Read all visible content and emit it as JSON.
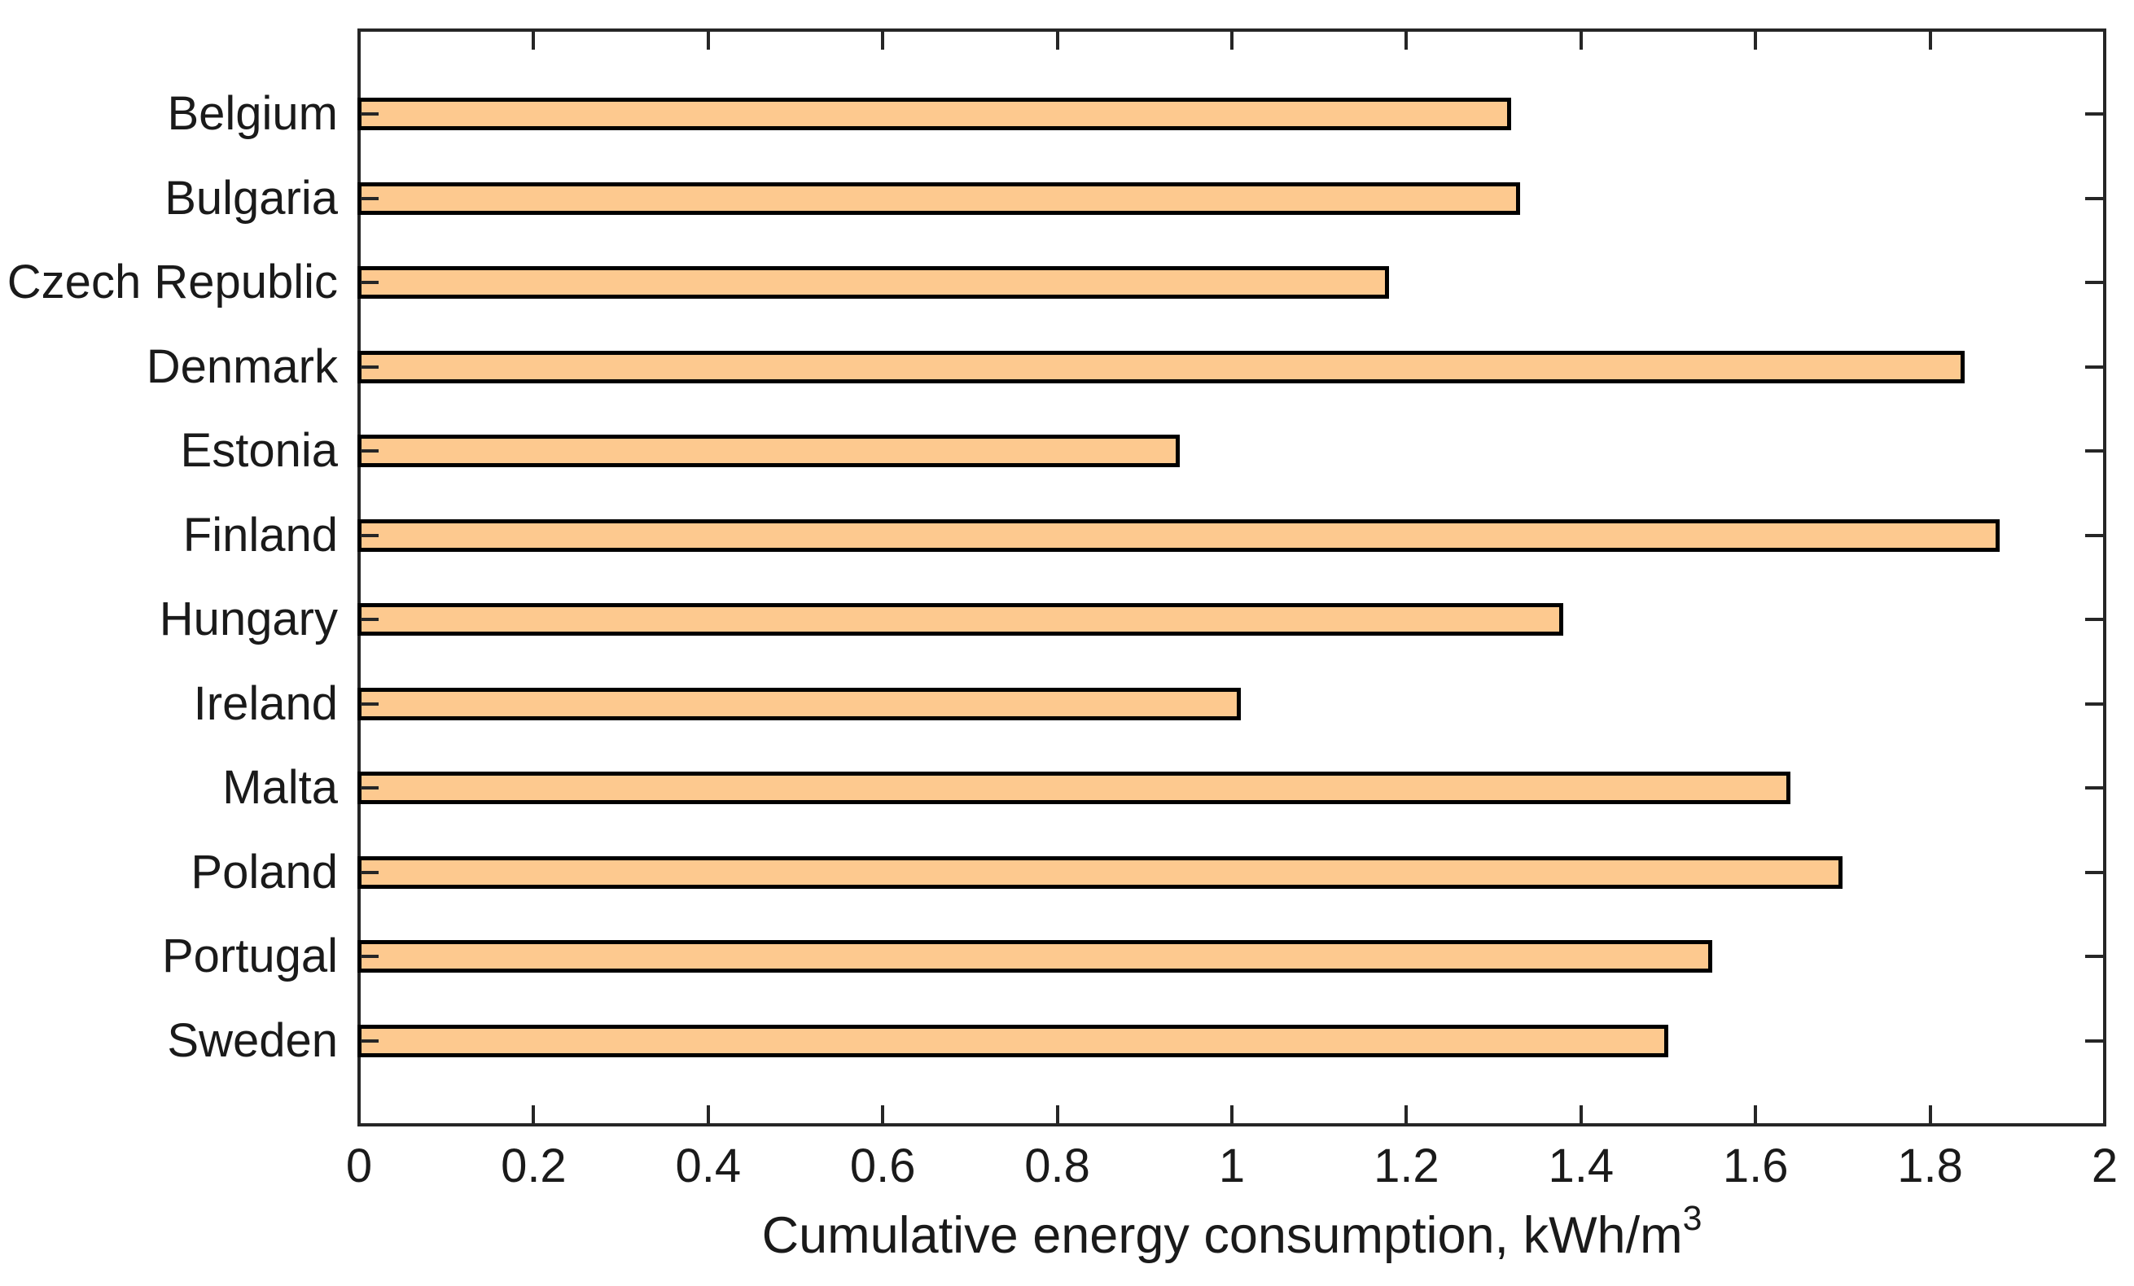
{
  "chart_data": {
    "type": "bar",
    "orientation": "horizontal",
    "title": "",
    "xlabel": "Cumulative energy consumption, kWh/m",
    "xlabel_superscript": "3",
    "ylabel": "",
    "categories": [
      "Belgium",
      "Bulgaria",
      "Czech Republic",
      "Denmark",
      "Estonia",
      "Finland",
      "Hungary",
      "Ireland",
      "Malta",
      "Poland",
      "Portugal",
      "Sweden"
    ],
    "values": [
      1.32,
      1.33,
      1.18,
      1.84,
      0.94,
      1.88,
      1.38,
      1.01,
      1.64,
      1.7,
      1.55,
      1.5
    ],
    "xlim": [
      0,
      2
    ],
    "xticks": [
      0,
      0.2,
      0.4,
      0.6,
      0.8,
      1,
      1.2,
      1.4,
      1.6,
      1.8,
      2
    ],
    "xtick_labels": [
      "0",
      "0.2",
      "0.4",
      "0.6",
      "0.8",
      "1",
      "1.2",
      "1.4",
      "1.6",
      "1.8",
      "2"
    ],
    "grid": false,
    "legend": "none",
    "bar_color": "#FDC98F",
    "bar_edge_color": "#000000",
    "axis_color": "#262626",
    "text_color": "#1a1a1a"
  }
}
